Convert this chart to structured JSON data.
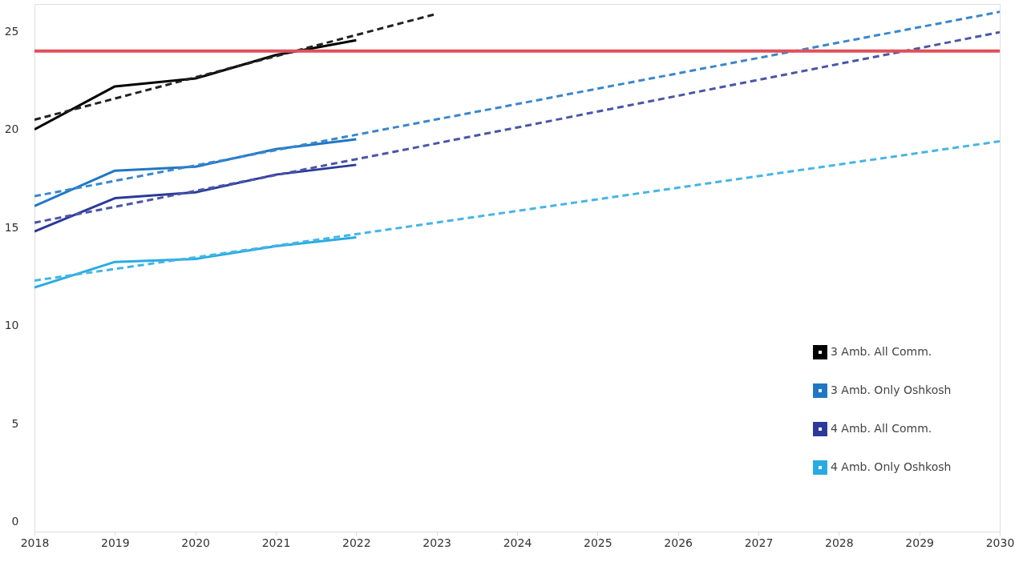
{
  "chart_data": {
    "type": "line",
    "x": [
      2018,
      2019,
      2020,
      2021,
      2022
    ],
    "xlim": [
      2018,
      2030
    ],
    "xticks": [
      2018,
      2019,
      2020,
      2021,
      2022,
      2023,
      2024,
      2025,
      2026,
      2027,
      2028,
      2029,
      2030
    ],
    "ylim": [
      -0.5,
      26.4
    ],
    "yticks": [
      0,
      5,
      10,
      15,
      20,
      25
    ],
    "grid": false,
    "legend": "bottom right",
    "marker": "none",
    "series": [
      {
        "name": "3 Amb. All Comm.",
        "color": "#000000",
        "values": [
          20.0,
          22.2,
          22.6,
          23.8,
          24.55
        ],
        "line_style": "solid"
      },
      {
        "name": "3 Amb. Only Oshkosh",
        "color": "#1f77c4",
        "values": [
          16.1,
          17.9,
          18.1,
          19.0,
          19.5
        ],
        "line_style": "solid"
      },
      {
        "name": "4 Amb. All Comm.",
        "color": "#2b3a98",
        "values": [
          14.8,
          16.5,
          16.8,
          17.7,
          18.2
        ],
        "line_style": "solid"
      },
      {
        "name": "4 Amb. Only Oshkosh",
        "color": "#29abe2",
        "values": [
          11.95,
          13.25,
          13.4,
          14.05,
          14.5
        ],
        "line_style": "solid"
      },
      {
        "type": "line",
        "color": "#222222",
        "x": [
          2018,
          2023
        ],
        "values": [
          20.5,
          25.9
        ],
        "line_style": "dashed"
      },
      {
        "type": "line",
        "color": "#3a87cc",
        "x": [
          2018,
          2030
        ],
        "values": [
          16.6,
          26.0
        ],
        "line_style": "dashed"
      },
      {
        "type": "line",
        "color": "#4a56a8",
        "x": [
          2018,
          2030
        ],
        "values": [
          15.25,
          24.96
        ],
        "line_style": "dashed"
      },
      {
        "type": "line",
        "color": "#45b5e6",
        "x": [
          2018,
          2030
        ],
        "values": [
          12.3,
          19.4
        ],
        "line_style": "dashed"
      }
    ],
    "ref_lines": [
      {
        "axis": "y",
        "value": 24.0,
        "color": "#e0505a",
        "line_style": "solid"
      }
    ]
  }
}
